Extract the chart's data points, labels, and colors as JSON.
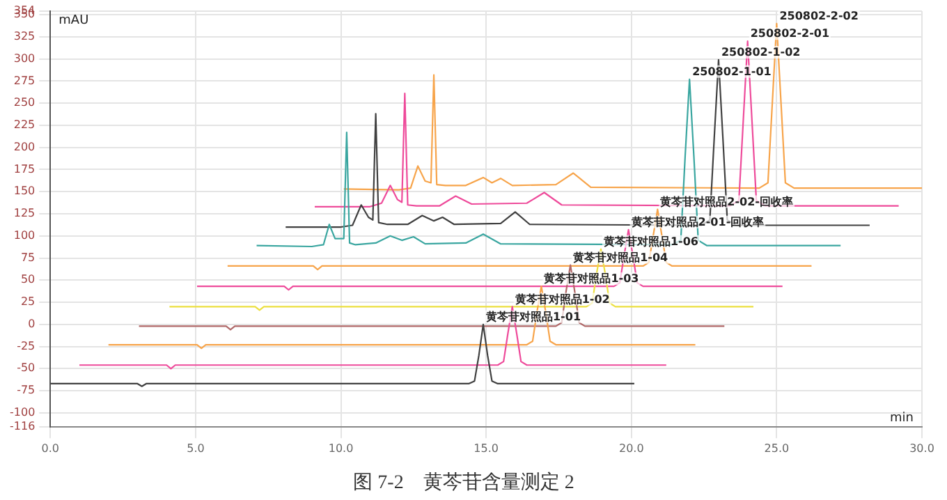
{
  "chart_data": {
    "type": "line",
    "title": "图 7-2　黄芩苷含量测定 2",
    "xlabel": "min",
    "ylabel": "mAU",
    "xlim": [
      0,
      30
    ],
    "xticks": [
      {
        "value": 0,
        "label": "0.0"
      },
      {
        "value": 5,
        "label": "5.0"
      },
      {
        "value": 10,
        "label": "10.0"
      },
      {
        "value": 15,
        "label": "15.0"
      },
      {
        "value": 20,
        "label": "20.0"
      },
      {
        "value": 25,
        "label": "25.0"
      },
      {
        "value": 30,
        "label": "30.0"
      }
    ],
    "ylim": [
      -116,
      354
    ],
    "yticks": [
      -116,
      -100,
      -75,
      -50,
      -25,
      0,
      25,
      50,
      75,
      100,
      125,
      150,
      175,
      200,
      225,
      250,
      275,
      300,
      325,
      350,
      354
    ],
    "grid": true,
    "legend": false,
    "marker": "none",
    "line_style": "solid",
    "series": [
      {
        "color": "#404040",
        "x": [
          0,
          3.0,
          3.15,
          3.3,
          14.4,
          14.6,
          14.75,
          14.9,
          15.05,
          15.2,
          15.4,
          20.1
        ],
        "values": [
          -67,
          -67,
          -70,
          -67,
          -67,
          -64,
          -35,
          0,
          -35,
          -64,
          -67,
          -67
        ]
      },
      {
        "color": "#ee4a9a",
        "x": [
          1.0,
          4.0,
          4.15,
          4.3,
          15.4,
          15.6,
          15.75,
          15.9,
          16.05,
          16.2,
          16.4,
          21.2
        ],
        "values": [
          -46,
          -46,
          -50,
          -46,
          -46,
          -42,
          -10,
          20,
          -10,
          -42,
          -46,
          -46
        ]
      },
      {
        "color": "#f7a44a",
        "x": [
          2.0,
          5.05,
          5.2,
          5.35,
          16.4,
          16.6,
          16.75,
          16.9,
          17.05,
          17.2,
          17.4,
          22.2
        ],
        "values": [
          -23,
          -23,
          -27,
          -23,
          -23,
          -19,
          14,
          43,
          14,
          -19,
          -23,
          -23
        ]
      },
      {
        "color": "#b06868",
        "x": [
          3.05,
          6.05,
          6.2,
          6.35,
          17.4,
          17.6,
          17.75,
          17.9,
          18.05,
          18.2,
          18.4,
          23.2
        ],
        "values": [
          -2,
          -2,
          -6,
          -2,
          -2,
          2,
          37,
          67,
          37,
          2,
          -2,
          -2
        ]
      },
      {
        "color": "#ece040",
        "x": [
          4.1,
          7.05,
          7.2,
          7.35,
          18.45,
          18.65,
          18.8,
          18.95,
          19.1,
          19.25,
          19.45,
          24.2
        ],
        "values": [
          20,
          20,
          16,
          20,
          20,
          24,
          57,
          85,
          57,
          24,
          20,
          20
        ]
      },
      {
        "color": "#ee4a9a",
        "x": [
          5.05,
          8.05,
          8.2,
          8.35,
          19.4,
          19.6,
          19.75,
          19.9,
          20.05,
          20.2,
          20.4,
          25.2
        ],
        "values": [
          43,
          43,
          39,
          43,
          43,
          47,
          78,
          107,
          78,
          47,
          43,
          43
        ]
      },
      {
        "color": "#f7a44a",
        "x": [
          6.1,
          9.05,
          9.2,
          9.35,
          20.4,
          20.6,
          20.75,
          20.9,
          21.05,
          21.2,
          21.4,
          26.2
        ],
        "values": [
          66,
          66,
          62,
          66,
          66,
          70,
          100,
          130,
          100,
          70,
          66,
          66
        ]
      },
      {
        "color": "#3aa6a0",
        "x": [
          7.1,
          9.0,
          9.4,
          9.6,
          9.8,
          10.1,
          10.2,
          10.3,
          10.5,
          11.2,
          11.7,
          12.1,
          12.5,
          12.9,
          14.3,
          14.9,
          15.5,
          21.4,
          21.7,
          21.85,
          22.0,
          22.15,
          22.3,
          22.6,
          27.2
        ],
        "values": [
          89,
          88,
          90,
          113,
          97,
          97,
          217,
          92,
          90,
          92,
          100,
          95,
          99,
          91,
          92,
          102,
          91,
          90,
          95,
          190,
          277,
          190,
          95,
          89,
          89
        ]
      },
      {
        "color": "#404040",
        "x": [
          8.1,
          10.0,
          10.4,
          10.7,
          10.95,
          11.1,
          11.2,
          11.3,
          11.6,
          12.3,
          12.8,
          13.2,
          13.5,
          13.9,
          15.5,
          16.0,
          16.5,
          22.4,
          22.7,
          22.85,
          23.0,
          23.15,
          23.3,
          23.6,
          28.2
        ],
        "values": [
          110,
          110,
          112,
          135,
          121,
          118,
          238,
          115,
          113,
          113,
          123,
          117,
          121,
          113,
          114,
          127,
          113,
          112,
          118,
          210,
          299,
          210,
          118,
          112,
          112
        ]
      },
      {
        "color": "#ee4a9a",
        "x": [
          9.1,
          11.0,
          11.4,
          11.7,
          11.95,
          12.1,
          12.2,
          12.3,
          12.6,
          13.4,
          13.95,
          14.5,
          16.4,
          17.0,
          17.6,
          23.4,
          23.7,
          23.85,
          24.0,
          24.15,
          24.3,
          24.6,
          29.2
        ],
        "values": [
          133,
          133,
          137,
          157,
          141,
          138,
          261,
          135,
          134,
          134,
          145,
          136,
          137,
          149,
          135,
          134,
          140,
          230,
          320,
          230,
          140,
          134,
          134
        ]
      },
      {
        "color": "#f7a44a",
        "x": [
          10.1,
          12.0,
          12.4,
          12.65,
          12.9,
          13.1,
          13.2,
          13.3,
          13.6,
          14.3,
          14.9,
          15.2,
          15.5,
          15.9,
          17.4,
          18.0,
          18.6,
          24.4,
          24.7,
          24.85,
          25.0,
          25.15,
          25.3,
          25.6,
          30.0
        ],
        "values": [
          153,
          152,
          154,
          179,
          162,
          160,
          282,
          158,
          157,
          157,
          166,
          160,
          165,
          157,
          158,
          171,
          155,
          154,
          160,
          250,
          340,
          250,
          160,
          154,
          154
        ]
      }
    ],
    "annotations": [
      {
        "text": "黄芩苷对照品1-01",
        "x": 14.9,
        "y": 0
      },
      {
        "text": "黄芩苷对照品1-02",
        "x": 15.9,
        "y": 20
      },
      {
        "text": "黄芩苷对照品1-03",
        "x": 16.9,
        "y": 43
      },
      {
        "text": "黄芩苷对照品1-04",
        "x": 17.9,
        "y": 67
      },
      {
        "text": "黄芩苷对照品1-06",
        "x": 18.95,
        "y": 85
      },
      {
        "text": "黄芩苷对照品2-01-回收率",
        "x": 19.9,
        "y": 107
      },
      {
        "text": "黄芩苷对照品2-02-回收率",
        "x": 20.9,
        "y": 130
      },
      {
        "text": "250802-1-01",
        "x": 22.0,
        "y": 277
      },
      {
        "text": "250802-1-02",
        "x": 23.0,
        "y": 299
      },
      {
        "text": "250802-2-01",
        "x": 24.0,
        "y": 320
      },
      {
        "text": "250802-2-02",
        "x": 25.0,
        "y": 340
      }
    ]
  }
}
